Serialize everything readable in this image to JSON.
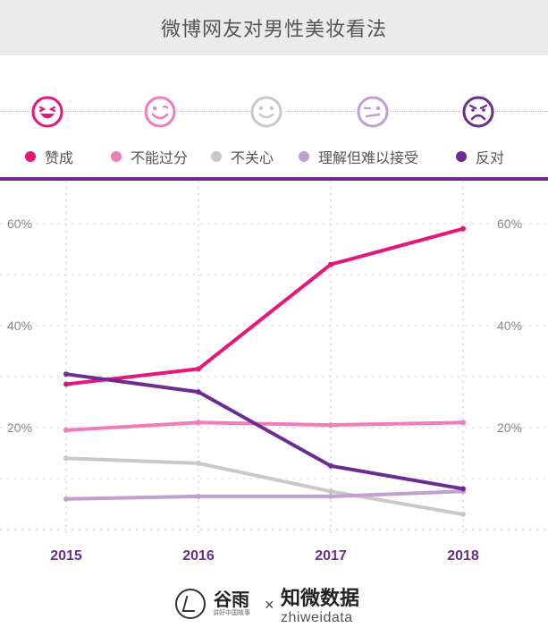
{
  "title": "微博网友对男性美妆看法",
  "faces": [
    {
      "icon": "laughing-face-icon",
      "color": "#e8157b"
    },
    {
      "icon": "smiling-face-icon",
      "color": "#f07cb9"
    },
    {
      "icon": "neutral-smile-face-icon",
      "color": "#c9c9c9"
    },
    {
      "icon": "uneasy-face-icon",
      "color": "#c09fd1"
    },
    {
      "icon": "frowning-face-icon",
      "color": "#6c2c91"
    }
  ],
  "legend": [
    {
      "label": "赞成",
      "color": "#e8157b"
    },
    {
      "label": "不能过分",
      "color": "#f07cb9"
    },
    {
      "label": "不关心",
      "color": "#c9c9c9"
    },
    {
      "label": "理解但难以接受",
      "color": "#c09fd1"
    },
    {
      "label": "反对",
      "color": "#6c2c91"
    }
  ],
  "chart_data": {
    "type": "line",
    "x": [
      "2015",
      "2016",
      "2017",
      "2018"
    ],
    "yticks": [
      "20%",
      "40%",
      "60%"
    ],
    "ylim": [
      0,
      65
    ],
    "grid": true,
    "series": [
      {
        "name": "赞成",
        "color": "#e8157b",
        "values": [
          28.5,
          31.5,
          52,
          59
        ]
      },
      {
        "name": "不能过分",
        "color": "#f07cb9",
        "values": [
          19.5,
          21,
          20.5,
          21
        ]
      },
      {
        "name": "不关心",
        "color": "#c9c9c9",
        "values": [
          14,
          13,
          7.5,
          3
        ]
      },
      {
        "name": "理解但难以接受",
        "color": "#c09fd1",
        "values": [
          6,
          6.5,
          6.5,
          7.5
        ]
      },
      {
        "name": "反对",
        "color": "#6c2c91",
        "values": [
          30.5,
          27,
          12.5,
          8
        ]
      }
    ]
  },
  "footer": {
    "logo_left_name": "谷雨",
    "logo_left_sub": "讲好中国故事",
    "separator": "×",
    "logo_right_name": "知微数据",
    "logo_right_sub": "zhiweidata"
  }
}
